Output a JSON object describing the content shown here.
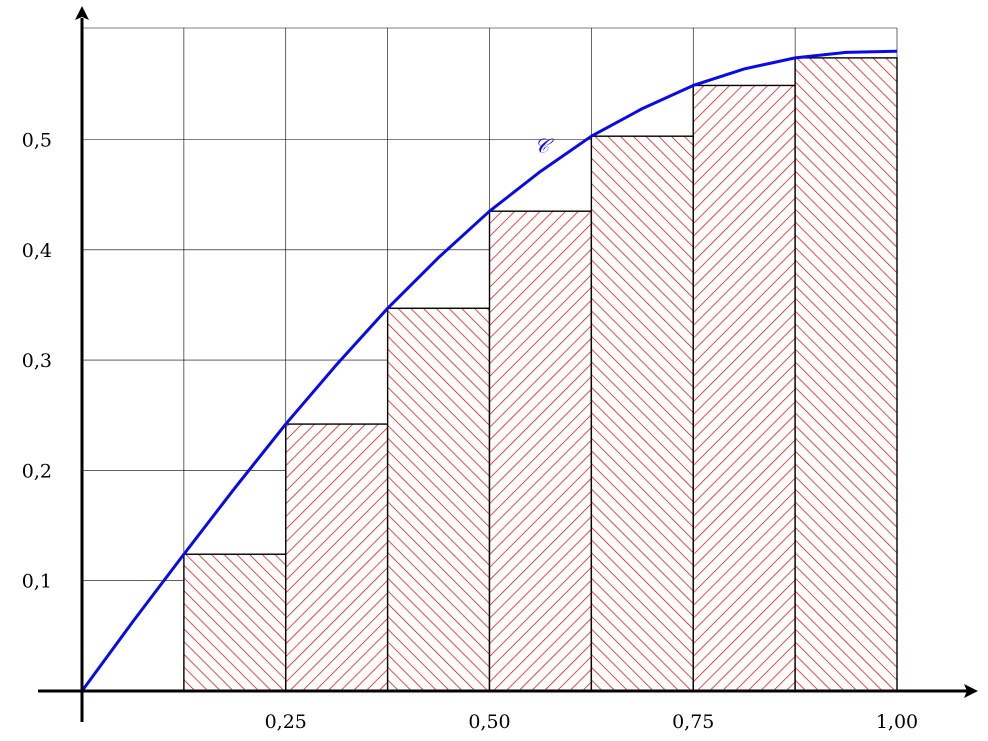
{
  "chart_data": {
    "type": "bar",
    "title": "",
    "xlabel": "",
    "ylabel": "",
    "xlim": [
      0,
      1
    ],
    "ylim": [
      0,
      0.6
    ],
    "grid": true,
    "x_ticks": [
      {
        "value": 0.25,
        "label": "0,25"
      },
      {
        "value": 0.5,
        "label": "0,50"
      },
      {
        "value": 0.75,
        "label": "0,75"
      },
      {
        "value": 1.0,
        "label": "1,00"
      }
    ],
    "y_ticks": [
      {
        "value": 0.1,
        "label": "0,1"
      },
      {
        "value": 0.2,
        "label": "0,2"
      },
      {
        "value": 0.3,
        "label": "0,3"
      },
      {
        "value": 0.4,
        "label": "0,4"
      },
      {
        "value": 0.5,
        "label": "0,5"
      }
    ],
    "bars": [
      {
        "x0": 0.125,
        "x1": 0.25,
        "value": 0.124,
        "hatch": "backslash"
      },
      {
        "x0": 0.25,
        "x1": 0.375,
        "value": 0.242,
        "hatch": "slash"
      },
      {
        "x0": 0.375,
        "x1": 0.5,
        "value": 0.347,
        "hatch": "backslash"
      },
      {
        "x0": 0.5,
        "x1": 0.625,
        "value": 0.435,
        "hatch": "slash"
      },
      {
        "x0": 0.625,
        "x1": 0.75,
        "value": 0.503,
        "hatch": "backslash"
      },
      {
        "x0": 0.75,
        "x1": 0.875,
        "value": 0.549,
        "hatch": "slash"
      },
      {
        "x0": 0.875,
        "x1": 1.0,
        "value": 0.574,
        "hatch": "backslash"
      }
    ],
    "curve": {
      "name": "𝒞",
      "color": "#0a0ae6",
      "points": [
        [
          0,
          0
        ],
        [
          0.0625,
          0.063
        ],
        [
          0.125,
          0.124
        ],
        [
          0.1875,
          0.184
        ],
        [
          0.25,
          0.242
        ],
        [
          0.3125,
          0.296
        ],
        [
          0.375,
          0.347
        ],
        [
          0.4375,
          0.393
        ],
        [
          0.5,
          0.435
        ],
        [
          0.5625,
          0.471
        ],
        [
          0.625,
          0.503
        ],
        [
          0.6875,
          0.528
        ],
        [
          0.75,
          0.549
        ],
        [
          0.8125,
          0.564
        ],
        [
          0.875,
          0.574
        ],
        [
          0.9375,
          0.579
        ],
        [
          1.0,
          0.58
        ]
      ],
      "label_at": [
        0.555,
        0.488
      ]
    },
    "colors": {
      "bar_hatch": "#e60000",
      "bar_edge": "#000000",
      "grid": "#000000"
    }
  }
}
